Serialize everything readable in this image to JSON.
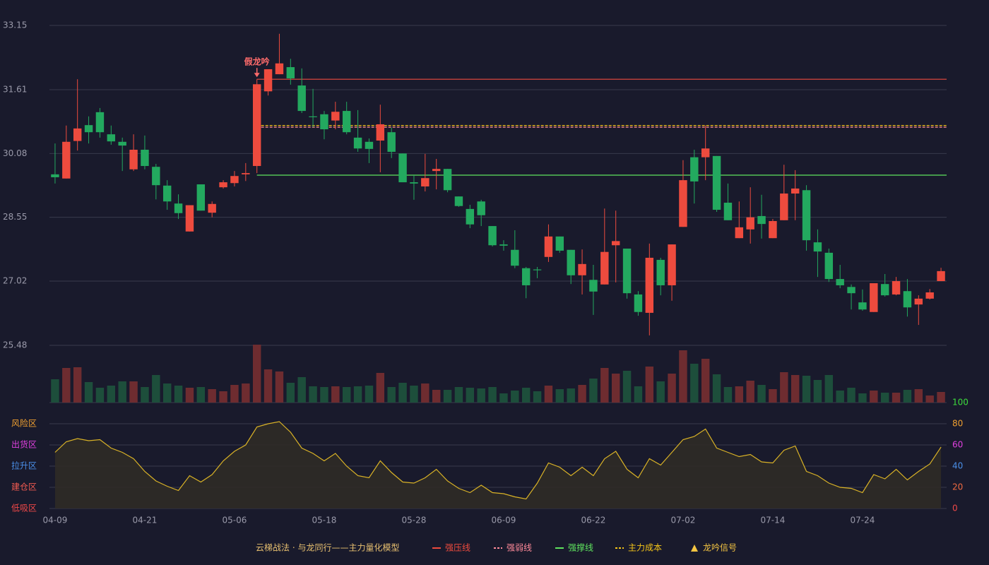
{
  "chart_data": [
    {
      "type": "candlestick",
      "title": "云梯战法 · 与龙同行——主力量化模型",
      "ylim": [
        25.48,
        33.15
      ],
      "yticks": [
        25.48,
        27.02,
        28.55,
        30.08,
        31.61,
        33.15
      ],
      "grid": true,
      "up_color": "#ee4b3e",
      "down_color": "#23a95f",
      "open": [
        29.58,
        29.48,
        30.38,
        30.76,
        31.07,
        30.54,
        30.36,
        29.7,
        30.17,
        29.76,
        29.31,
        28.88,
        28.21,
        29.34,
        28.66,
        29.27,
        29.37,
        29.58,
        29.78,
        31.57,
        31.98,
        32.15,
        31.71,
        30.97,
        31.02,
        30.87,
        31.1,
        30.46,
        30.36,
        30.39,
        30.59,
        30.08,
        29.39,
        29.29,
        29.66,
        29.71,
        29.05,
        28.75,
        28.93,
        28.34,
        27.9,
        27.77,
        27.33,
        27.3,
        27.6,
        28.09,
        27.77,
        27.16,
        27.05,
        26.94,
        27.88,
        27.8,
        26.7,
        26.26,
        27.53,
        26.92,
        28.32,
        29.99,
        29.99,
        30.02,
        28.9,
        28.05,
        28.26,
        28.58,
        28.05,
        28.48,
        29.12,
        29.2,
        27.95,
        27.7,
        27.07,
        26.88,
        26.51,
        26.28,
        26.95,
        26.7,
        26.78,
        26.46,
        26.6,
        27.02
      ],
      "high": [
        30.32,
        30.75,
        31.86,
        30.97,
        31.17,
        30.75,
        30.46,
        30.54,
        30.51,
        29.83,
        29.44,
        29.1,
        28.84,
        29.34,
        28.93,
        29.44,
        29.66,
        29.85,
        31.86,
        32.1,
        32.95,
        32.35,
        32.12,
        31.63,
        31.1,
        31.32,
        31.32,
        31.12,
        30.44,
        31.25,
        30.7,
        30.08,
        29.56,
        30.07,
        29.95,
        29.71,
        29.05,
        28.85,
        28.97,
        28.34,
        28.0,
        28.24,
        27.36,
        27.36,
        28.38,
        28.09,
        27.77,
        27.78,
        27.41,
        28.76,
        28.71,
        27.8,
        26.78,
        27.92,
        27.58,
        27.9,
        29.92,
        30.17,
        30.75,
        30.02,
        29.36,
        28.93,
        29.27,
        29.09,
        28.51,
        29.81,
        29.68,
        29.32,
        28.26,
        27.8,
        27.41,
        26.94,
        26.82,
        26.97,
        27.19,
        27.12,
        27.07,
        26.68,
        26.83,
        27.34
      ],
      "low": [
        29.36,
        29.48,
        30.15,
        30.32,
        30.46,
        30.29,
        29.66,
        29.66,
        29.7,
        28.98,
        28.73,
        28.51,
        28.21,
        28.71,
        28.55,
        29.24,
        29.29,
        29.42,
        29.61,
        31.47,
        31.98,
        31.73,
        31.05,
        30.71,
        30.42,
        30.66,
        30.54,
        30.12,
        29.85,
        29.63,
        29.97,
        29.39,
        28.97,
        29.17,
        29.22,
        29.15,
        28.8,
        28.29,
        28.34,
        27.85,
        27.75,
        27.33,
        26.61,
        27.09,
        27.48,
        27.7,
        26.95,
        26.7,
        26.21,
        26.94,
        26.99,
        26.6,
        26.19,
        25.72,
        26.68,
        26.55,
        28.32,
        28.88,
        29.44,
        28.68,
        28.48,
        28.05,
        27.92,
        28.04,
        28.05,
        28.48,
        28.48,
        27.75,
        27.12,
        27.0,
        26.85,
        26.34,
        26.31,
        26.28,
        26.65,
        26.68,
        26.17,
        25.97,
        26.58,
        27.02
      ],
      "close": [
        29.51,
        30.36,
        30.68,
        30.59,
        30.59,
        30.37,
        30.27,
        30.17,
        29.78,
        29.32,
        28.93,
        28.65,
        28.84,
        28.71,
        28.87,
        29.39,
        29.54,
        29.61,
        31.74,
        32.1,
        32.24,
        31.88,
        31.1,
        30.95,
        30.66,
        31.08,
        30.59,
        30.2,
        30.19,
        30.78,
        30.12,
        29.39,
        29.36,
        29.49,
        29.71,
        29.2,
        28.82,
        28.38,
        28.6,
        27.88,
        27.87,
        27.39,
        26.92,
        27.28,
        28.09,
        27.75,
        27.16,
        27.43,
        26.77,
        27.72,
        27.98,
        26.73,
        26.28,
        27.58,
        26.92,
        27.9,
        29.44,
        29.41,
        30.2,
        28.73,
        28.48,
        28.31,
        28.55,
        28.39,
        28.46,
        29.12,
        29.24,
        28.0,
        27.73,
        27.07,
        26.92,
        26.73,
        26.34,
        26.97,
        26.68,
        27.02,
        26.39,
        26.6,
        26.75,
        27.26
      ],
      "levels": [
        {
          "name": "强压线",
          "value": 31.86,
          "color": "#ee4b3e",
          "dashed": false
        },
        {
          "name": "强弱线",
          "value": 30.71,
          "color": "#ff8a9a",
          "dashed": true
        },
        {
          "name": "强撑线",
          "value": 29.56,
          "color": "#5ee35e",
          "dashed": false
        },
        {
          "name": "主力成本",
          "value": 30.75,
          "color": "#f5c518",
          "dashed": true
        }
      ],
      "signal": {
        "label": "假龙吟",
        "index": 18,
        "color": "#ff6b6b",
        "legend": "龙吟信号",
        "legend_color": "#f5c542"
      }
    },
    {
      "type": "bar",
      "ylim": [
        0,
        82
      ],
      "up_color": "#6e2c30",
      "down_color": "#1d4e3b",
      "values": [
        33,
        49,
        50,
        29,
        21,
        24,
        30,
        30,
        22,
        39,
        27,
        24,
        21,
        22,
        19,
        16,
        25,
        27,
        82,
        47,
        44,
        28,
        36,
        23,
        22,
        23,
        22,
        23,
        24,
        42,
        22,
        28,
        24,
        27,
        18,
        18,
        22,
        21,
        20,
        22,
        13,
        17,
        21,
        16,
        24,
        19,
        20,
        25,
        34,
        49,
        41,
        45,
        23,
        51,
        30,
        41,
        74,
        55,
        62,
        40,
        22,
        23,
        31,
        25,
        19,
        43,
        39,
        38,
        32,
        39,
        17,
        21,
        13,
        17,
        14,
        14,
        18,
        19,
        10,
        15
      ]
    },
    {
      "type": "line",
      "color": "#d9b226",
      "fill": "#2f2b26",
      "categories": [
        "04-09",
        null,
        null,
        null,
        null,
        null,
        null,
        null,
        "04-21",
        null,
        null,
        null,
        null,
        null,
        null,
        null,
        "05-06",
        null,
        null,
        null,
        null,
        null,
        null,
        null,
        "05-18",
        null,
        null,
        null,
        null,
        null,
        null,
        null,
        "05-28",
        null,
        null,
        null,
        null,
        null,
        null,
        null,
        "06-09",
        null,
        null,
        null,
        null,
        null,
        null,
        null,
        "06-22",
        null,
        null,
        null,
        null,
        null,
        null,
        null,
        "07-02",
        null,
        null,
        null,
        null,
        null,
        null,
        null,
        "07-14",
        null,
        null,
        null,
        null,
        null,
        null,
        null,
        "07-24",
        null,
        null,
        null,
        null,
        null,
        null,
        null
      ],
      "values": [
        53,
        63,
        66,
        64,
        65,
        57,
        53,
        47,
        35,
        26,
        21,
        17,
        31,
        25,
        32,
        45,
        54,
        60,
        77,
        80,
        82,
        72,
        57,
        52,
        45,
        52,
        40,
        31,
        29,
        45,
        34,
        25,
        24,
        29,
        37,
        26,
        19,
        15,
        22,
        15,
        14,
        11,
        9,
        24,
        43,
        39,
        31,
        39,
        31,
        47,
        54,
        37,
        29,
        47,
        41,
        53,
        65,
        68,
        75,
        57,
        53,
        49,
        51,
        44,
        43,
        55,
        59,
        35,
        31,
        24,
        20,
        19,
        15,
        32,
        28,
        37,
        27,
        35,
        42,
        58
      ],
      "ylim": [
        0,
        100
      ],
      "yticks": [
        0,
        20,
        40,
        60,
        80,
        100
      ],
      "ytick_colors": [
        "#f04848",
        "#f06a40",
        "#4a8fe8",
        "#e040e0",
        "#f0a030",
        "#3ddc3d"
      ],
      "zones": [
        {
          "label": "风险区",
          "value": 80,
          "color": "#f0a030"
        },
        {
          "label": "出货区",
          "value": 60,
          "color": "#e040e0"
        },
        {
          "label": "拉升区",
          "value": 40,
          "color": "#4a8fe8"
        },
        {
          "label": "建仓区",
          "value": 20,
          "color": "#f05a50"
        },
        {
          "label": "低吸区",
          "value": 0,
          "color": "#f04848"
        }
      ]
    }
  ]
}
